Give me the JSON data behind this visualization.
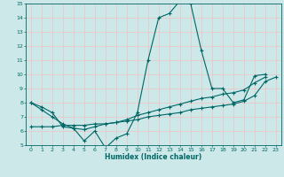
{
  "xlabel": "Humidex (Indice chaleur)",
  "bg_color": "#cce8e8",
  "grid_color_h": "#e8c8c8",
  "grid_color_v": "#e8c8c8",
  "line_color": "#006666",
  "tick_color": "#006666",
  "xlim": [
    -0.5,
    23.5
  ],
  "ylim": [
    5,
    15
  ],
  "yticks": [
    5,
    6,
    7,
    8,
    9,
    10,
    11,
    12,
    13,
    14,
    15
  ],
  "xticks": [
    0,
    1,
    2,
    3,
    4,
    5,
    6,
    7,
    8,
    9,
    10,
    11,
    12,
    13,
    14,
    15,
    16,
    17,
    18,
    19,
    20,
    21,
    22,
    23
  ],
  "series": [
    {
      "x": [
        0,
        1,
        2,
        3,
        4,
        5,
        6,
        7,
        8,
        9,
        10,
        11,
        12,
        13,
        14,
        15,
        16,
        17,
        18,
        19,
        20,
        21,
        22
      ],
      "y": [
        8.0,
        7.7,
        7.3,
        6.3,
        6.2,
        5.3,
        6.0,
        4.8,
        5.5,
        5.8,
        7.3,
        11.0,
        14.0,
        14.3,
        15.2,
        15.0,
        11.7,
        9.0,
        9.0,
        8.0,
        8.2,
        9.9,
        10.0
      ]
    },
    {
      "x": [
        0,
        1,
        2,
        3,
        4,
        5,
        6,
        7,
        8,
        9,
        10,
        11,
        12,
        13,
        14,
        15,
        16,
        17,
        18,
        19,
        20,
        21,
        22
      ],
      "y": [
        8.0,
        7.5,
        7.0,
        6.5,
        6.2,
        6.1,
        6.3,
        6.5,
        6.6,
        6.8,
        7.1,
        7.3,
        7.5,
        7.7,
        7.9,
        8.1,
        8.3,
        8.4,
        8.6,
        8.7,
        8.9,
        9.4,
        9.8
      ]
    },
    {
      "x": [
        0,
        1,
        2,
        3,
        4,
        5,
        6,
        7,
        8,
        9,
        10,
        11,
        12,
        13,
        14,
        15,
        16,
        17,
        18,
        19,
        20,
        21,
        22,
        23
      ],
      "y": [
        6.3,
        6.3,
        6.3,
        6.4,
        6.4,
        6.4,
        6.5,
        6.5,
        6.6,
        6.7,
        6.8,
        7.0,
        7.1,
        7.2,
        7.3,
        7.5,
        7.6,
        7.7,
        7.8,
        7.9,
        8.1,
        8.5,
        9.5,
        9.8
      ]
    }
  ]
}
